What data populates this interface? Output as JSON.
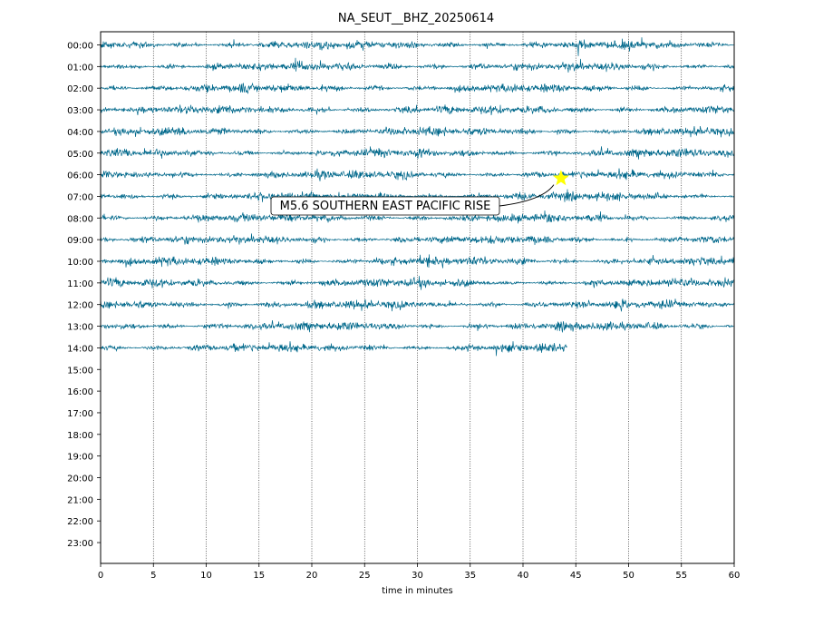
{
  "chart_data": {
    "type": "line",
    "title": "NA_SEUT__BHZ_20250614",
    "xlabel": "time in minutes",
    "ylabel": "",
    "xlim": [
      0,
      60
    ],
    "x_ticks": [
      "0",
      "5",
      "10",
      "15",
      "20",
      "25",
      "30",
      "35",
      "40",
      "45",
      "50",
      "55",
      "60"
    ],
    "y_ticks": [
      "00:00",
      "01:00",
      "02:00",
      "03:00",
      "04:00",
      "05:00",
      "06:00",
      "07:00",
      "08:00",
      "09:00",
      "10:00",
      "11:00",
      "12:00",
      "13:00",
      "14:00",
      "15:00",
      "16:00",
      "17:00",
      "18:00",
      "19:00",
      "20:00",
      "21:00",
      "22:00",
      "23:00"
    ],
    "grid": "vertical dotted lines at x ticks",
    "trace_color": "#00688b",
    "traces": [
      {
        "hour": "00:00",
        "start_min": 0,
        "end_min": 60
      },
      {
        "hour": "01:00",
        "start_min": 0,
        "end_min": 60
      },
      {
        "hour": "02:00",
        "start_min": 0,
        "end_min": 60
      },
      {
        "hour": "03:00",
        "start_min": 0,
        "end_min": 60
      },
      {
        "hour": "04:00",
        "start_min": 0,
        "end_min": 60
      },
      {
        "hour": "05:00",
        "start_min": 0,
        "end_min": 60
      },
      {
        "hour": "06:00",
        "start_min": 0,
        "end_min": 60
      },
      {
        "hour": "07:00",
        "start_min": 0,
        "end_min": 60
      },
      {
        "hour": "08:00",
        "start_min": 0,
        "end_min": 60
      },
      {
        "hour": "09:00",
        "start_min": 0,
        "end_min": 60
      },
      {
        "hour": "10:00",
        "start_min": 0,
        "end_min": 60
      },
      {
        "hour": "11:00",
        "start_min": 0,
        "end_min": 60
      },
      {
        "hour": "12:00",
        "start_min": 0,
        "end_min": 60
      },
      {
        "hour": "13:00",
        "start_min": 0,
        "end_min": 60
      },
      {
        "hour": "14:00",
        "start_min": 0,
        "end_min": 44.2
      }
    ],
    "event": {
      "label": "M5.6 SOUTHERN EAST PACIFIC RISE",
      "hour": "06:00",
      "minute": 43.6,
      "marker": "star",
      "marker_color": "#ffff00"
    }
  }
}
